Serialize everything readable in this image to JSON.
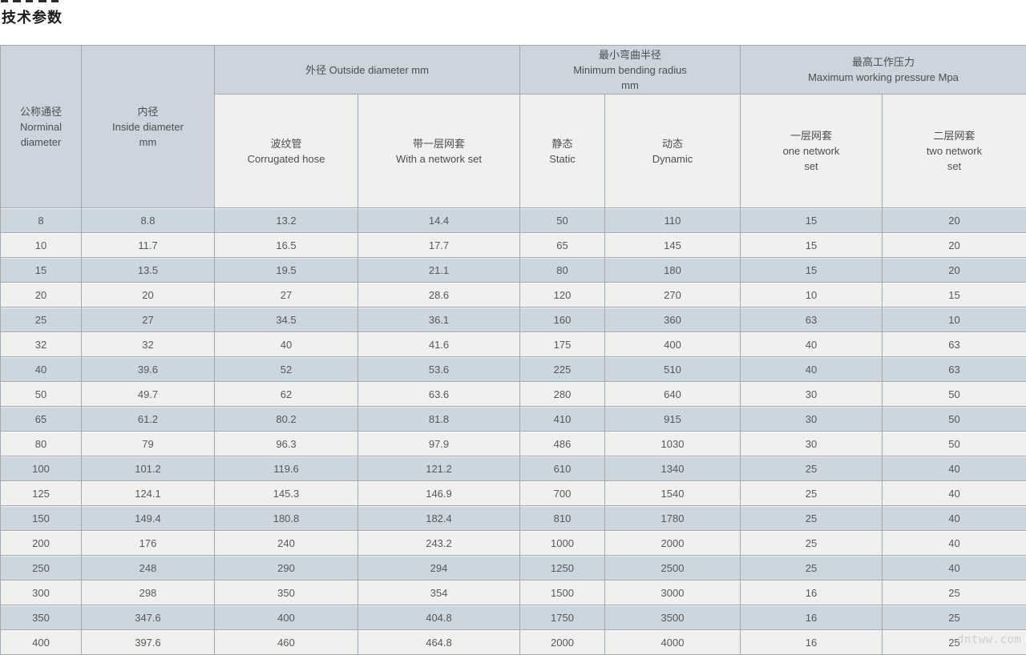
{
  "page": {
    "title": "技术参数",
    "watermark": "dntww.com"
  },
  "colors": {
    "header_bg": "#ccd5dd",
    "subheader_bg": "#f0f0ee",
    "row_stripe_bg": "#ccd6de",
    "row_bg": "#f0f0ee",
    "border": "#a4a9ae",
    "cell_text": "#55585c",
    "title_text": "#1c1c1c",
    "watermark_text": "#cfcfc9"
  },
  "table": {
    "header": {
      "col_nominal": "公称通径\nNorminal\ndiameter",
      "col_inside": "内径\nInside diameter\nmm",
      "group_outside": "外径 Outside diameter mm",
      "group_bending": "最小弯曲半径\nMinimum bending radius\nmm",
      "group_pressure": "最高工作压力\nMaximum working pressure Mpa",
      "sub_corrugated": "波纹管\nCorrugated hose",
      "sub_network": "带一层网套\nWith a network set",
      "sub_static": "静态\nStatic",
      "sub_dynamic": "动态\nDynamic",
      "sub_one_network": "一层网套\none network\nset",
      "sub_two_network": "二层网套\ntwo network\nset"
    },
    "rows": [
      [
        "8",
        "8.8",
        "13.2",
        "14.4",
        "50",
        "110",
        "15",
        "20"
      ],
      [
        "10",
        "11.7",
        "16.5",
        "17.7",
        "65",
        "145",
        "15",
        "20"
      ],
      [
        "15",
        "13.5",
        "19.5",
        "21.1",
        "80",
        "180",
        "15",
        "20"
      ],
      [
        "20",
        "20",
        "27",
        "28.6",
        "120",
        "270",
        "10",
        "15"
      ],
      [
        "25",
        "27",
        "34.5",
        "36.1",
        "160",
        "360",
        "63",
        "10"
      ],
      [
        "32",
        "32",
        "40",
        "41.6",
        "175",
        "400",
        "40",
        "63"
      ],
      [
        "40",
        "39.6",
        "52",
        "53.6",
        "225",
        "510",
        "40",
        "63"
      ],
      [
        "50",
        "49.7",
        "62",
        "63.6",
        "280",
        "640",
        "30",
        "50"
      ],
      [
        "65",
        "61.2",
        "80.2",
        "81.8",
        "410",
        "915",
        "30",
        "50"
      ],
      [
        "80",
        "79",
        "96.3",
        "97.9",
        "486",
        "1030",
        "30",
        "50"
      ],
      [
        "100",
        "101.2",
        "119.6",
        "121.2",
        "610",
        "1340",
        "25",
        "40"
      ],
      [
        "125",
        "124.1",
        "145.3",
        "146.9",
        "700",
        "1540",
        "25",
        "40"
      ],
      [
        "150",
        "149.4",
        "180.8",
        "182.4",
        "810",
        "1780",
        "25",
        "40"
      ],
      [
        "200",
        "176",
        "240",
        "243.2",
        "1000",
        "2000",
        "25",
        "40"
      ],
      [
        "250",
        "248",
        "290",
        "294",
        "1250",
        "2500",
        "25",
        "40"
      ],
      [
        "300",
        "298",
        "350",
        "354",
        "1500",
        "3000",
        "16",
        "25"
      ],
      [
        "350",
        "347.6",
        "400",
        "404.8",
        "1750",
        "3500",
        "16",
        "25"
      ],
      [
        "400",
        "397.6",
        "460",
        "464.8",
        "2000",
        "4000",
        "16",
        "25"
      ]
    ]
  }
}
